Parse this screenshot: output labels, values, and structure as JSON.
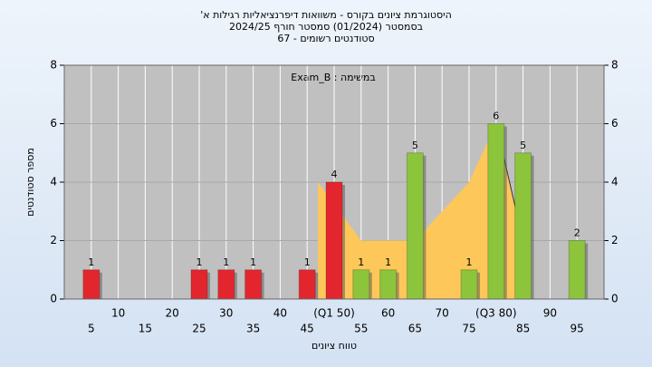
{
  "chart_data": {
    "type": "histogram",
    "title": "היסטוגרמת ציונים בקורס - משוואות דיפרנציאליות רגילות א'",
    "subtitle": "בסמסטר  (01/2024)  סמסטר חורף 2024/25",
    "subtitle2": "סטודנטים רשומים - 67",
    "annotation": "במשימה : Exam_B",
    "x_label": "טווח ציונים",
    "y_label": "מספר סטודנטים",
    "x": [
      5,
      10,
      15,
      20,
      25,
      30,
      35,
      40,
      45,
      50,
      55,
      60,
      65,
      70,
      75,
      80,
      85,
      90,
      95
    ],
    "values": [
      1,
      0,
      0,
      0,
      1,
      1,
      1,
      0,
      1,
      4,
      1,
      1,
      5,
      0,
      1,
      6,
      5,
      0,
      2
    ],
    "colors": [
      "#e3262d",
      "#e3262d",
      "#e3262d",
      "#e3262d",
      "#e3262d",
      "#e3262d",
      "#e3262d",
      "#e3262d",
      "#e3262d",
      "#e3262d",
      "#8cc43c",
      "#8cc43c",
      "#8cc43c",
      "#8cc43c",
      "#8cc43c",
      "#8cc43c",
      "#8cc43c",
      "#8cc43c",
      "#8cc43c"
    ],
    "area": {
      "x": [
        47,
        55,
        65,
        75,
        80,
        85
      ],
      "values": [
        4,
        2,
        2,
        4,
        6,
        2
      ],
      "color": "#fdc75a"
    },
    "xlim": [
      0,
      100
    ],
    "xticks": [
      5,
      10,
      15,
      20,
      25,
      30,
      35,
      40,
      45,
      {
        "value": 50,
        "label": "(Q1 50)"
      },
      55,
      60,
      65,
      70,
      75,
      {
        "value": 80,
        "label": "(Q3 80)"
      },
      85,
      90,
      95
    ],
    "ylim": [
      0,
      8
    ],
    "yticks": [
      0,
      2,
      4,
      6,
      8
    ],
    "y2lim": [
      0,
      8
    ],
    "y2ticks": [
      0,
      2,
      4,
      6,
      8
    ],
    "grid": true
  }
}
